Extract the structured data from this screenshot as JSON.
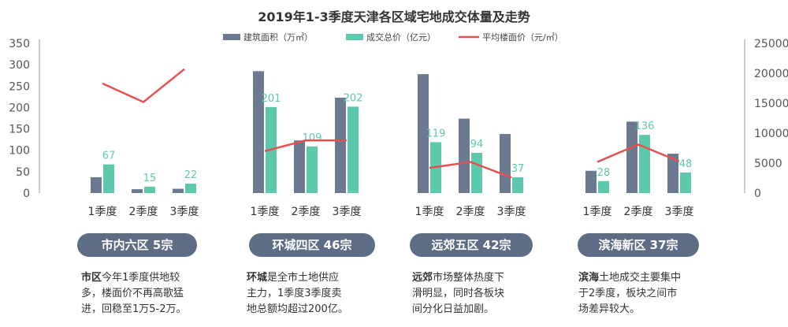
{
  "title": "2019年1-3季度天津各区域宅地成交体量及走势",
  "legend": {
    "area": "建筑面积（万㎡）",
    "total": "成交总价（亿元）",
    "price": "平均楼面价（元/㎡）"
  },
  "colors": {
    "area": "#6b7a90",
    "total": "#5cc9ad",
    "price": "#e85050",
    "axis_text": "#555555",
    "pill": "#5e6d86"
  },
  "chart_data": {
    "type": "bar",
    "left_axis": {
      "ylim": [
        0,
        350
      ],
      "ticks": [
        0,
        50,
        100,
        150,
        200,
        250,
        300,
        350
      ]
    },
    "right_axis": {
      "ylim": [
        0,
        25000
      ],
      "ticks": [
        0,
        5000,
        10000,
        15000,
        20000,
        25000
      ]
    },
    "categories": [
      "1季度",
      "2季度",
      "3季度"
    ],
    "groups": [
      {
        "name": "市内六区",
        "area": [
          37,
          9,
          10
        ],
        "total": [
          67,
          15,
          22
        ],
        "total_labels": [
          "67",
          "15",
          "22"
        ],
        "price": [
          18300,
          15200,
          20700
        ]
      },
      {
        "name": "环城四区",
        "area": [
          285,
          123,
          223
        ],
        "total": [
          201,
          109,
          202
        ],
        "total_labels": [
          "201",
          "109",
          "202"
        ],
        "price": [
          7000,
          8800,
          8800
        ]
      },
      {
        "name": "远郊五区",
        "area": [
          278,
          174,
          138
        ],
        "total": [
          119,
          94,
          37
        ],
        "total_labels": [
          "119",
          "94",
          "37"
        ],
        "price": [
          4200,
          5200,
          2600
        ]
      },
      {
        "name": "滨海新区",
        "area": [
          52,
          167,
          92
        ],
        "total": [
          28,
          136,
          48
        ],
        "total_labels": [
          "28",
          "136",
          "48"
        ],
        "price": [
          5200,
          8100,
          5300
        ]
      }
    ]
  },
  "pills": [
    "市内六区 5宗",
    "环城四区 46宗",
    "远郊五区 42宗",
    "滨海新区 37宗"
  ],
  "descriptions": [
    {
      "highlight": "市区",
      "lines": [
        "今年1季度供地较",
        "多，楼面价不再高歌猛",
        "进，回稳至1万5-2万。"
      ]
    },
    {
      "highlight": "环城",
      "lines": [
        "是全市土地供应",
        "主力，1季度3季度卖",
        "地总额均超过200亿。"
      ]
    },
    {
      "highlight": "远郊",
      "lines": [
        "市场整体热度下",
        "滑明显，同时各板块",
        "间分化日益加剧。"
      ]
    },
    {
      "highlight": "滨海",
      "lines": [
        "土地成交主要集中",
        "于2季度，板块之间市",
        "场差异较大。"
      ]
    }
  ]
}
